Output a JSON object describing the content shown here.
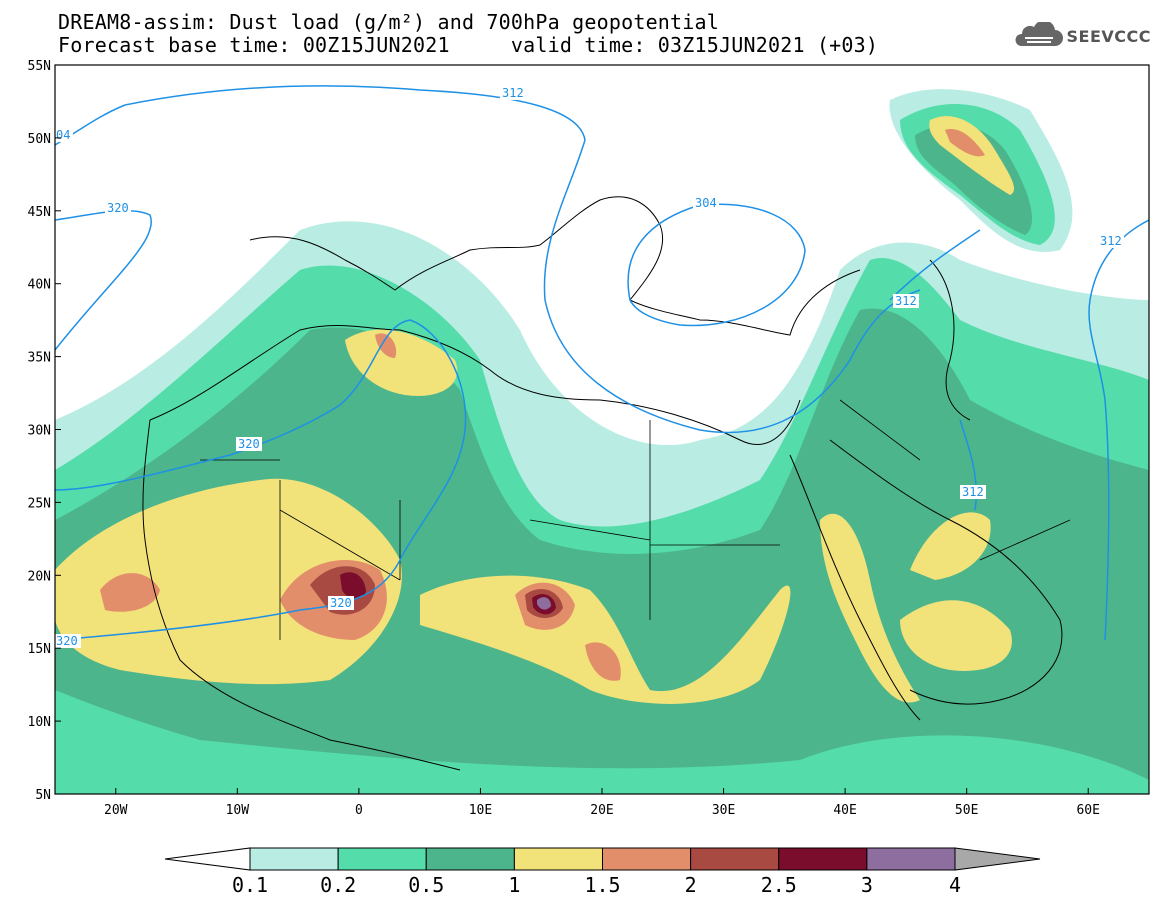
{
  "title": {
    "line1": "DREAM8-assim: Dust load (g/m²) and 700hPa geopotential",
    "line2": "Forecast base time: 00Z15JUN2021     valid time: 03Z15JUN2021 (+03)"
  },
  "logo": {
    "text": "SEEVCCC",
    "icon": "cloud-icon"
  },
  "map": {
    "lat_labels": [
      "55N",
      "50N",
      "45N",
      "40N",
      "35N",
      "30N",
      "25N",
      "20N",
      "15N",
      "10N",
      "5N"
    ],
    "lon_labels": [
      "20W",
      "10W",
      "0",
      "10E",
      "20E",
      "30E",
      "40E",
      "50E",
      "60E"
    ],
    "extent": {
      "lon_min": -25,
      "lon_max": 65,
      "lat_min": 5,
      "lat_max": 55
    },
    "contour_labels": [
      "312",
      "304",
      "320",
      "320",
      "320",
      "304",
      "312",
      "312",
      "312",
      "320"
    ]
  },
  "colorbar": {
    "levels": [
      "0.1",
      "0.2",
      "0.5",
      "1",
      "1.5",
      "2",
      "2.5",
      "3",
      "4"
    ],
    "colors": [
      "#ffffff",
      "#b9ede3",
      "#55dcab",
      "#4db58c",
      "#f2e27a",
      "#e38e6a",
      "#a84a42",
      "#7a0c2c",
      "#8e6e9e",
      "#a8a8a8"
    ]
  },
  "colors": {
    "c01": "#b9ede3",
    "c02": "#55dcab",
    "c05": "#4db58c",
    "c10": "#f2e27a",
    "c15": "#e38e6a",
    "c20": "#a84a42",
    "c25": "#7a0c2c",
    "c30": "#8e6e9e",
    "contour": "#1e90e6"
  }
}
